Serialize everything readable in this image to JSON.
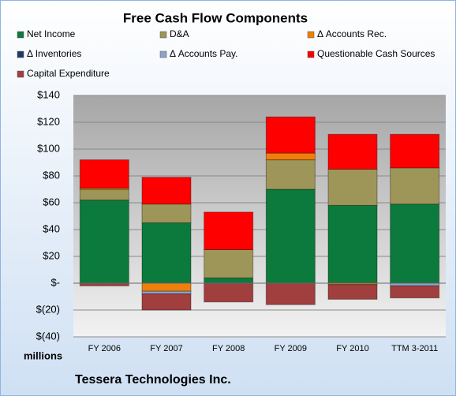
{
  "chart_data": {
    "type": "stacked-bar",
    "title": "Free Cash Flow Components",
    "y_axis_label": "millions",
    "footer": "Tessera Technologies Inc.",
    "categories": [
      "FY 2006",
      "FY 2007",
      "FY 2008",
      "FY 2009",
      "FY 2010",
      "TTM 3-2011"
    ],
    "series": [
      {
        "name": "Net Income",
        "color": "#0b7a3c",
        "values": [
          62,
          45,
          4,
          70,
          58,
          59
        ]
      },
      {
        "name": "D&A",
        "color": "#9e9559",
        "values": [
          8,
          14,
          21,
          22,
          27,
          27
        ]
      },
      {
        "name": "Δ Accounts Rec.",
        "color": "#f07f09",
        "values": [
          1,
          -6,
          0,
          5,
          -1,
          0
        ]
      },
      {
        "name": "Δ Inventories",
        "color": "#1f3864",
        "values": [
          0,
          0,
          0,
          0,
          0,
          0
        ]
      },
      {
        "name": "Δ Accounts Pay.",
        "color": "#8da2c6",
        "values": [
          0,
          -2,
          0,
          0,
          0,
          -2
        ]
      },
      {
        "name": "Questionable Cash Sources",
        "color": "#ff0000",
        "values": [
          21,
          20,
          28,
          27,
          26,
          25
        ]
      },
      {
        "name": "Capital Expenditure",
        "color": "#a13e3e",
        "values": [
          -2,
          -12,
          -14,
          -16,
          -11,
          -9
        ]
      }
    ],
    "ylim": [
      -40,
      140
    ],
    "yticks": [
      {
        "value": -40,
        "label": "$(40)"
      },
      {
        "value": -20,
        "label": "$(20)"
      },
      {
        "value": 0,
        "label": "$-"
      },
      {
        "value": 20,
        "label": "$20"
      },
      {
        "value": 40,
        "label": "$40"
      },
      {
        "value": 60,
        "label": "$60"
      },
      {
        "value": 80,
        "label": "$80"
      },
      {
        "value": 100,
        "label": "$100"
      },
      {
        "value": 120,
        "label": "$120"
      },
      {
        "value": 140,
        "label": "$140"
      }
    ],
    "grid": true
  }
}
